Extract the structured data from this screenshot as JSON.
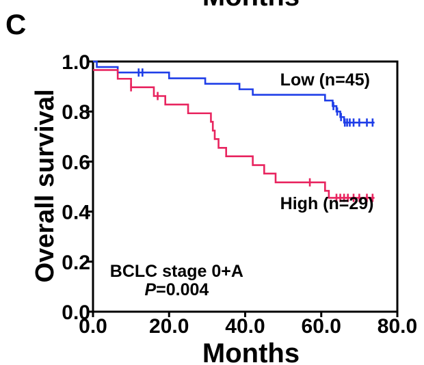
{
  "top_cut_label": "Months",
  "panel_label": "C",
  "chart_data": {
    "type": "line",
    "chart_subtype": "kaplan-meier",
    "xlabel": "Months",
    "ylabel": "Overall survival",
    "xlim": [
      0,
      80
    ],
    "ylim": [
      0,
      1
    ],
    "x_ticks": [
      0,
      20,
      40,
      60,
      80
    ],
    "x_tick_labels": [
      "0.0",
      "20.0",
      "40.0",
      "60.0",
      "80.0"
    ],
    "y_ticks": [
      0,
      0.2,
      0.4,
      0.6,
      0.8,
      1.0
    ],
    "y_tick_labels": [
      "0.0",
      "0.2",
      "0.4",
      "0.6",
      "0.8",
      "1.0"
    ],
    "grid": false,
    "series": [
      {
        "name": "Low (n=45)",
        "color": "#1f3ee8",
        "steps": [
          [
            0,
            1.0
          ],
          [
            1.0,
            0.978
          ],
          [
            6.5,
            0.956
          ],
          [
            20,
            0.933
          ],
          [
            29.5,
            0.911
          ],
          [
            38.5,
            0.889
          ],
          [
            42,
            0.867
          ],
          [
            46,
            0.867
          ],
          [
            61,
            0.844
          ],
          [
            63,
            0.822
          ],
          [
            64,
            0.8
          ],
          [
            65,
            0.778
          ],
          [
            66,
            0.756
          ],
          [
            74,
            0.756
          ]
        ],
        "censors": [
          [
            12,
            0.956
          ],
          [
            13,
            0.956
          ],
          [
            63.2,
            0.822
          ],
          [
            64.2,
            0.8
          ],
          [
            65.2,
            0.778
          ],
          [
            66.2,
            0.756
          ],
          [
            66.8,
            0.756
          ],
          [
            67.5,
            0.756
          ],
          [
            68.5,
            0.756
          ],
          [
            70,
            0.756
          ],
          [
            72,
            0.756
          ],
          [
            73.5,
            0.756
          ]
        ]
      },
      {
        "name": "High (n=29)",
        "color": "#e8245f",
        "steps": [
          [
            0,
            0.966
          ],
          [
            6.5,
            0.931
          ],
          [
            10,
            0.897
          ],
          [
            16,
            0.862
          ],
          [
            19,
            0.828
          ],
          [
            25,
            0.793
          ],
          [
            31,
            0.759
          ],
          [
            31.5,
            0.724
          ],
          [
            32,
            0.69
          ],
          [
            33,
            0.655
          ],
          [
            35,
            0.621
          ],
          [
            42,
            0.586
          ],
          [
            45,
            0.552
          ],
          [
            48,
            0.517
          ],
          [
            57,
            0.517
          ],
          [
            61,
            0.483
          ],
          [
            62,
            0.455
          ],
          [
            74,
            0.455
          ]
        ],
        "censors": [
          [
            10,
            0.897
          ],
          [
            17,
            0.862
          ],
          [
            57,
            0.517
          ],
          [
            64,
            0.455
          ],
          [
            65,
            0.455
          ],
          [
            66,
            0.455
          ],
          [
            67,
            0.455
          ],
          [
            68.5,
            0.455
          ],
          [
            70,
            0.455
          ],
          [
            72,
            0.455
          ],
          [
            73.5,
            0.455
          ]
        ]
      }
    ],
    "annotations": [
      {
        "text": "Low (n=45)",
        "x": 61,
        "y": 0.905
      },
      {
        "text": "High (n=29)",
        "x": 61.5,
        "y": 0.41
      },
      {
        "text": "BCLC stage 0+A",
        "x": 22,
        "y": 0.14
      },
      {
        "text_italic": "P",
        "text": "=0.004",
        "x": 22,
        "y": 0.065
      }
    ]
  }
}
